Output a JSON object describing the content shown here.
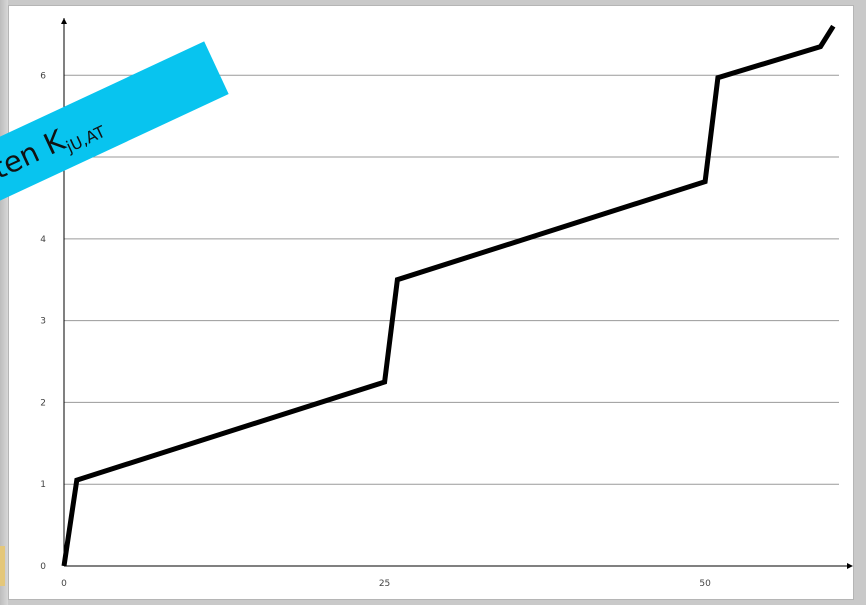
{
  "banner": {
    "text": "sten K",
    "subscript": "jU,AT",
    "color": "#08c4ef"
  },
  "colors": {
    "background": "#c9c9c9",
    "plot_background": "#ffffff",
    "line": "#000000",
    "grid": "#9a9a9a"
  },
  "chart_data": {
    "type": "line",
    "title": "",
    "xlabel": "",
    "ylabel": "",
    "xlim": [
      0,
      60
    ],
    "ylim": [
      0,
      6.7
    ],
    "x_ticks": [
      0,
      25,
      50
    ],
    "y_ticks": [
      0,
      1,
      2,
      3,
      4,
      5,
      6
    ],
    "y_tick_labels": [
      "0",
      "1",
      "2",
      "3",
      "4",
      "",
      "6"
    ],
    "grid": "horizontal",
    "legend": "none",
    "series": [
      {
        "x": [
          0,
          1,
          25,
          26,
          50,
          51,
          59,
          60
        ],
        "y": [
          0,
          1.05,
          2.25,
          3.5,
          4.7,
          5.97,
          6.35,
          6.6
        ]
      }
    ]
  }
}
